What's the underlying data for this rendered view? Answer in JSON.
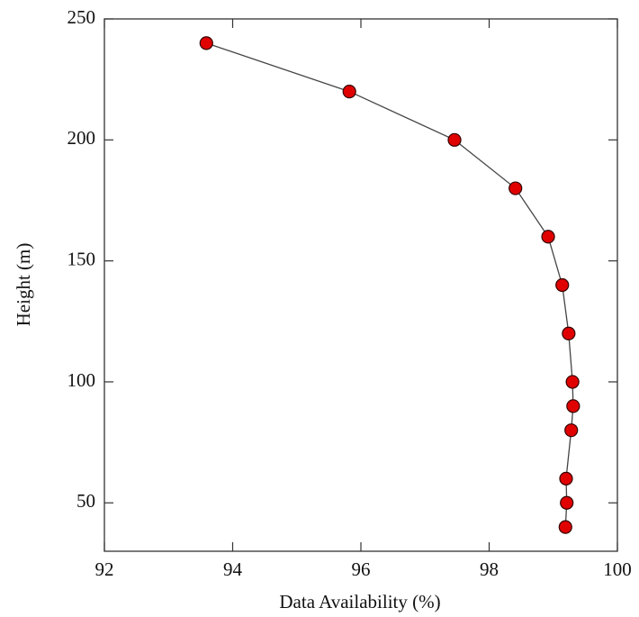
{
  "chart_data": {
    "type": "line",
    "xlabel": "Data Availability (%)",
    "ylabel": "Height (m)",
    "x": [
      93.59,
      95.82,
      97.46,
      98.41,
      98.92,
      99.14,
      99.24,
      99.3,
      99.31,
      99.28,
      99.2,
      99.21,
      99.19
    ],
    "values": [
      240,
      220,
      200,
      180,
      160,
      140,
      120,
      100,
      90,
      80,
      60,
      50,
      40
    ],
    "color": "#e00000",
    "xlim": [
      92,
      100
    ],
    "xticks": [
      92,
      94,
      96,
      98,
      100
    ],
    "ylim": [
      30,
      250
    ],
    "yticks": [
      50,
      100,
      150,
      200,
      250
    ]
  }
}
